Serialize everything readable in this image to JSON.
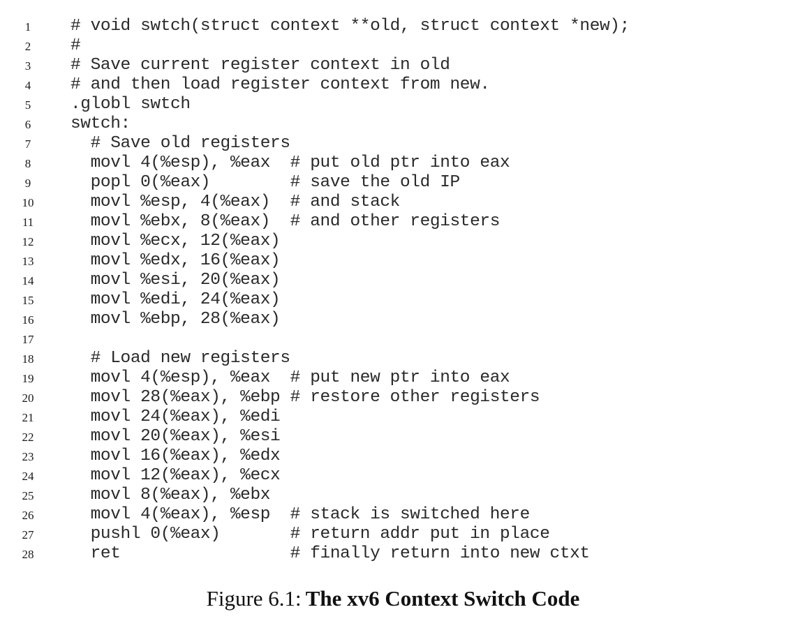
{
  "listing": {
    "lines": [
      {
        "n": "1",
        "text": "# void swtch(struct context **old, struct context *new);"
      },
      {
        "n": "2",
        "text": "#"
      },
      {
        "n": "3",
        "text": "# Save current register context in old"
      },
      {
        "n": "4",
        "text": "# and then load register context from new."
      },
      {
        "n": "5",
        "text": ".globl swtch"
      },
      {
        "n": "6",
        "text": "swtch:"
      },
      {
        "n": "7",
        "text": "  # Save old registers"
      },
      {
        "n": "8",
        "text": "  movl 4(%esp), %eax  # put old ptr into eax"
      },
      {
        "n": "9",
        "text": "  popl 0(%eax)        # save the old IP"
      },
      {
        "n": "10",
        "text": "  movl %esp, 4(%eax)  # and stack"
      },
      {
        "n": "11",
        "text": "  movl %ebx, 8(%eax)  # and other registers"
      },
      {
        "n": "12",
        "text": "  movl %ecx, 12(%eax)"
      },
      {
        "n": "13",
        "text": "  movl %edx, 16(%eax)"
      },
      {
        "n": "14",
        "text": "  movl %esi, 20(%eax)"
      },
      {
        "n": "15",
        "text": "  movl %edi, 24(%eax)"
      },
      {
        "n": "16",
        "text": "  movl %ebp, 28(%eax)"
      },
      {
        "n": "17",
        "text": ""
      },
      {
        "n": "18",
        "text": "  # Load new registers"
      },
      {
        "n": "19",
        "text": "  movl 4(%esp), %eax  # put new ptr into eax"
      },
      {
        "n": "20",
        "text": "  movl 28(%eax), %ebp # restore other registers"
      },
      {
        "n": "21",
        "text": "  movl 24(%eax), %edi"
      },
      {
        "n": "22",
        "text": "  movl 20(%eax), %esi"
      },
      {
        "n": "23",
        "text": "  movl 16(%eax), %edx"
      },
      {
        "n": "24",
        "text": "  movl 12(%eax), %ecx"
      },
      {
        "n": "25",
        "text": "  movl 8(%eax), %ebx"
      },
      {
        "n": "26",
        "text": "  movl 4(%eax), %esp  # stack is switched here"
      },
      {
        "n": "27",
        "text": "  pushl 0(%eax)       # return addr put in place"
      },
      {
        "n": "28",
        "text": "  ret                 # finally return into new ctxt"
      }
    ]
  },
  "caption": {
    "prefix": "Figure 6.1:",
    "title": "The xv6 Context Switch Code"
  }
}
